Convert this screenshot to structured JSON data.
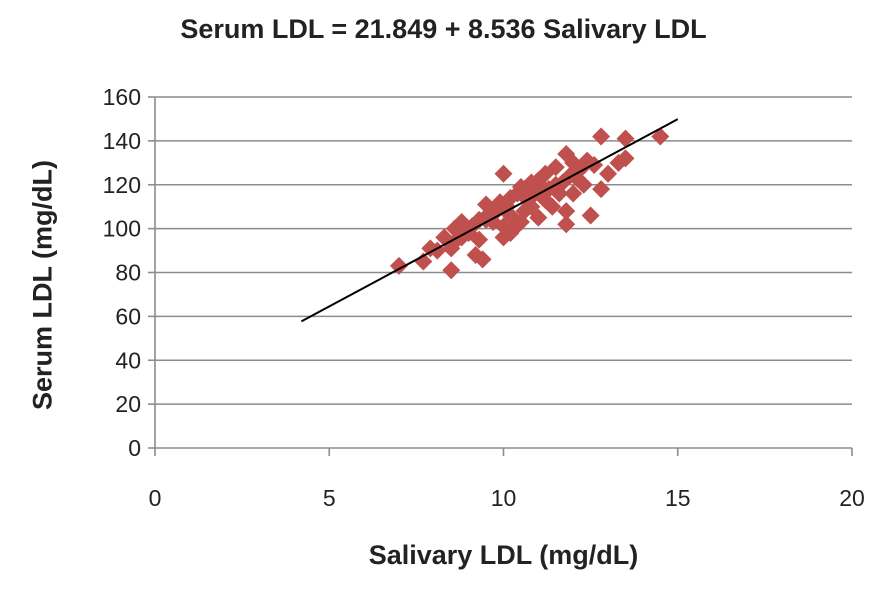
{
  "chart_data": {
    "type": "scatter",
    "title": "Serum LDL = 21.849  + 8.536  Salivary LDL",
    "xlabel": "Salivary LDL (mg/dL)",
    "ylabel": "Serum LDL (mg/dL)",
    "xlim": [
      0,
      20
    ],
    "ylim": [
      0,
      160
    ],
    "xticks": [
      0,
      5,
      10,
      15,
      20
    ],
    "yticks": [
      0,
      20,
      40,
      60,
      80,
      100,
      120,
      140,
      160
    ],
    "grid": "horizontal",
    "marker": "diamond",
    "marker_color": "#c0504d",
    "line_color": "#000000",
    "trendline": {
      "intercept": 21.849,
      "slope": 8.536,
      "x_start": 4.2,
      "x_end": 15.0
    },
    "series": [
      {
        "x": [
          7.0,
          7.7,
          7.9,
          8.1,
          8.3,
          8.5,
          8.6,
          8.6,
          8.7,
          8.8,
          8.8,
          8.9,
          9.0,
          9.1,
          9.2,
          9.3,
          9.4,
          9.5,
          9.5,
          9.6,
          9.7,
          9.8,
          9.9,
          10.0,
          10.0,
          10.1,
          10.2,
          10.2,
          10.3,
          10.4,
          10.5,
          10.5,
          10.6,
          10.6,
          10.7,
          10.8,
          10.8,
          10.9,
          11.0,
          11.0,
          11.1,
          11.2,
          11.2,
          11.3,
          11.4,
          11.5,
          11.5,
          11.6,
          11.7,
          11.8,
          11.8,
          11.9,
          12.0,
          12.0,
          12.1,
          12.2,
          12.3,
          12.4,
          12.5,
          12.6,
          12.8,
          12.8,
          13.0,
          13.3,
          13.5,
          13.5,
          14.5,
          8.5,
          9.3,
          10.2,
          10.0,
          11.8
        ],
        "y": [
          83,
          85,
          91,
          90,
          96,
          81,
          100,
          94,
          99,
          103,
          96,
          101,
          98,
          101,
          88,
          104,
          86,
          111,
          104,
          107,
          103,
          108,
          112,
          125,
          101,
          110,
          106,
          114,
          100,
          116,
          103,
          119,
          108,
          118,
          113,
          110,
          121,
          116,
          105,
          122,
          119,
          113,
          125,
          118,
          110,
          120,
          128,
          116,
          121,
          102,
          134,
          124,
          130,
          116,
          123,
          127,
          120,
          131,
          106,
          129,
          118,
          142,
          125,
          130,
          132,
          141,
          142,
          91,
          95,
          98,
          96,
          108
        ]
      }
    ]
  }
}
